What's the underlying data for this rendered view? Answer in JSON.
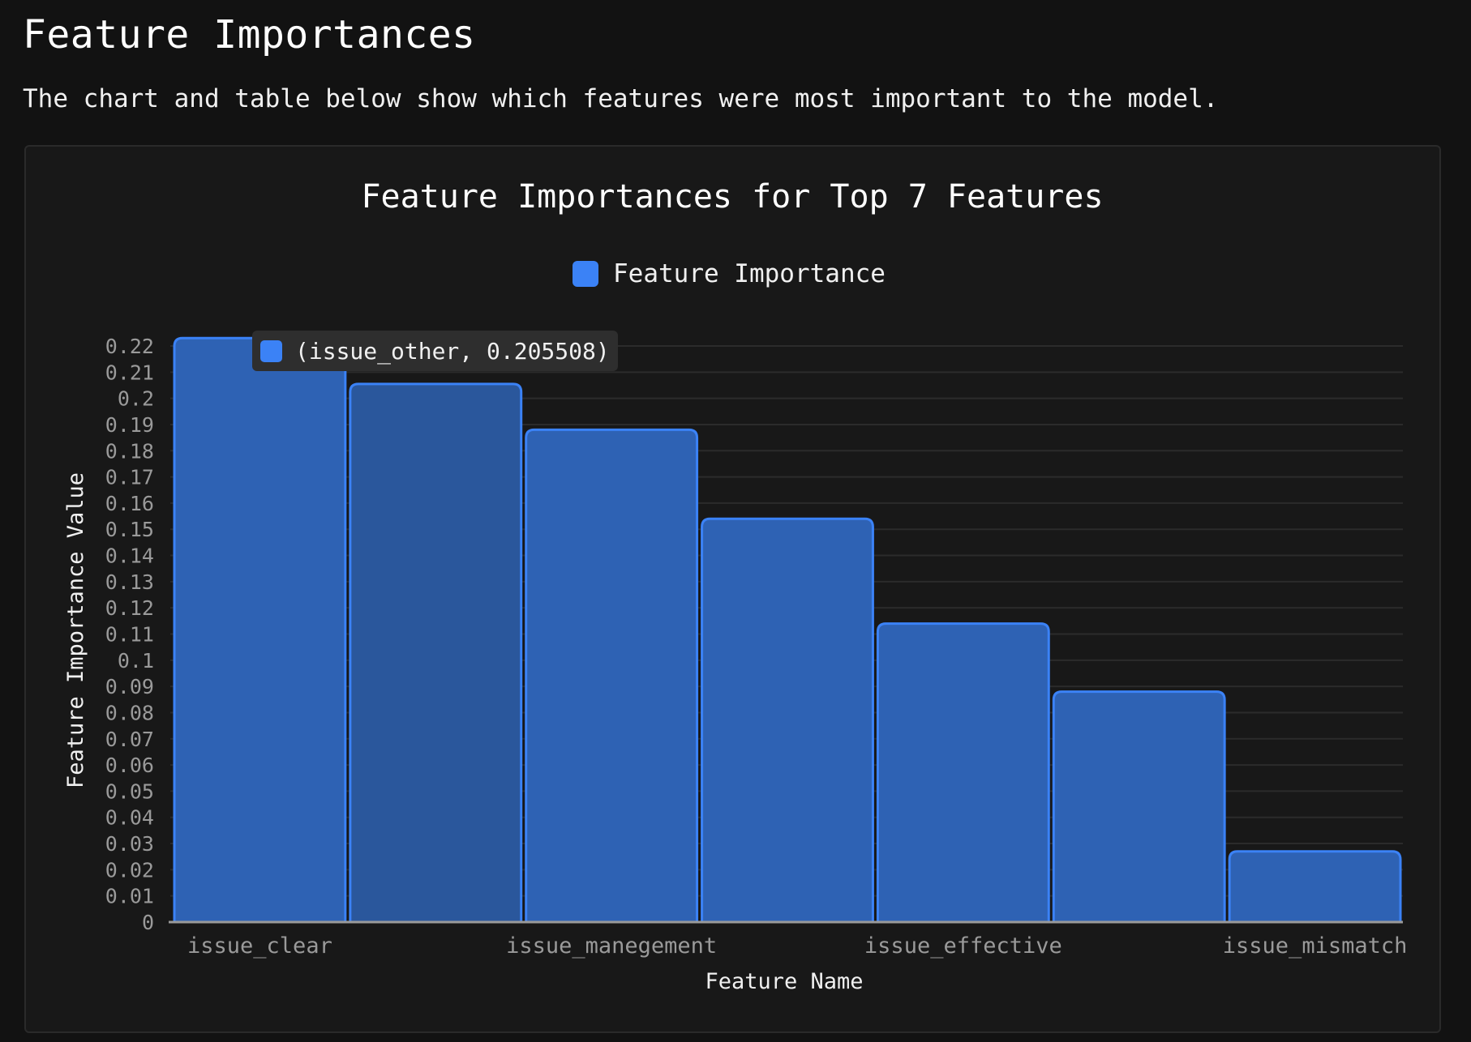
{
  "page": {
    "title": "Feature Importances",
    "description": "The chart and table below show which features were most important to the model."
  },
  "tooltip": {
    "text": "(issue_other, 0.205508)",
    "color": "#3b82f6"
  },
  "colors": {
    "bar_fill": "#2e62b4",
    "bar_fill_hover": "#2a579c",
    "bar_stroke": "#3b82f6",
    "legend_swatch": "#3b82f6",
    "grid": "#2b2b2b",
    "axis_text": "#9a9a9a",
    "label_text": "#f0f0f0"
  },
  "chart_data": {
    "type": "bar",
    "title": "Feature Importances for Top 7 Features",
    "xlabel": "Feature Name",
    "ylabel": "Feature Importance Value",
    "legend": {
      "label": "Feature Importance",
      "position": "top-center"
    },
    "grid": true,
    "ylim": [
      0,
      0.22
    ],
    "categories": [
      "issue_clear",
      "issue_other",
      "issue_manegement",
      "",
      "issue_effective",
      "",
      "issue_mismatch"
    ],
    "category_labels_shown": [
      "issue_clear",
      "issue_manegement",
      "issue_effective",
      "issue_mismatch"
    ],
    "series": [
      {
        "name": "Feature Importance",
        "values": [
          0.223,
          0.205508,
          0.188,
          0.154,
          0.114,
          0.088,
          0.027
        ]
      }
    ],
    "highlighted_index": 1,
    "y_ticks": [
      "0",
      "0.01",
      "0.02",
      "0.03",
      "0.04",
      "0.05",
      "0.06",
      "0.07",
      "0.08",
      "0.09",
      "0.1",
      "0.11",
      "0.12",
      "0.13",
      "0.14",
      "0.15",
      "0.16",
      "0.17",
      "0.18",
      "0.19",
      "0.2",
      "0.21",
      "0.22"
    ]
  }
}
